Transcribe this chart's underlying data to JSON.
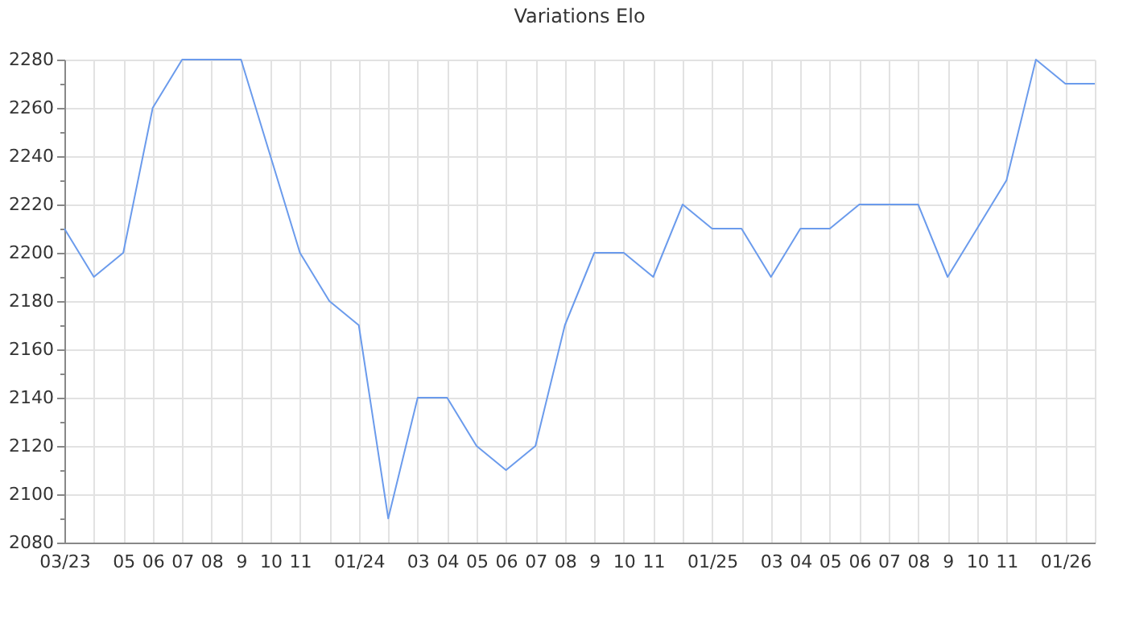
{
  "chart_data": {
    "type": "line",
    "title": "Variations Elo",
    "categories": [
      "03/23",
      null,
      "05",
      "06",
      "07",
      "08",
      "9",
      "10",
      "11",
      null,
      "01/24",
      null,
      "03",
      "04",
      "05",
      "06",
      "07",
      "08",
      "9",
      "10",
      "11",
      null,
      "01/25",
      null,
      "03",
      "04",
      "05",
      "06",
      "07",
      "08",
      "9",
      "10",
      "11",
      null,
      "01/26",
      null
    ],
    "series": [
      {
        "color": "#6b9bec",
        "values": [
          2210,
          2190,
          2200,
          2260,
          2280,
          2280,
          2280,
          2240,
          2200,
          2180,
          2170,
          2090,
          2140,
          2140,
          2120,
          2110,
          2120,
          2170,
          2200,
          2200,
          2190,
          2220,
          2210,
          2210,
          2190,
          2210,
          2210,
          2220,
          2220,
          2220,
          2190,
          2210,
          2230,
          2280,
          2270,
          2270
        ]
      }
    ],
    "ylim": [
      2080,
      2280
    ],
    "yticks": [
      2080,
      {
        "value": 2090,
        "label": null
      },
      2100,
      {
        "value": 2110,
        "label": null
      },
      2120,
      {
        "value": 2130,
        "label": null
      },
      2140,
      {
        "value": 2150,
        "label": null
      },
      2160,
      {
        "value": 2170,
        "label": null
      },
      2180,
      {
        "value": 2190,
        "label": null
      },
      2200,
      {
        "value": 2210,
        "label": null
      },
      2220,
      {
        "value": 2230,
        "label": null
      },
      2240,
      {
        "value": 2250,
        "label": null
      },
      2260,
      {
        "value": 2270,
        "label": null
      },
      2280
    ],
    "grid": true
  }
}
